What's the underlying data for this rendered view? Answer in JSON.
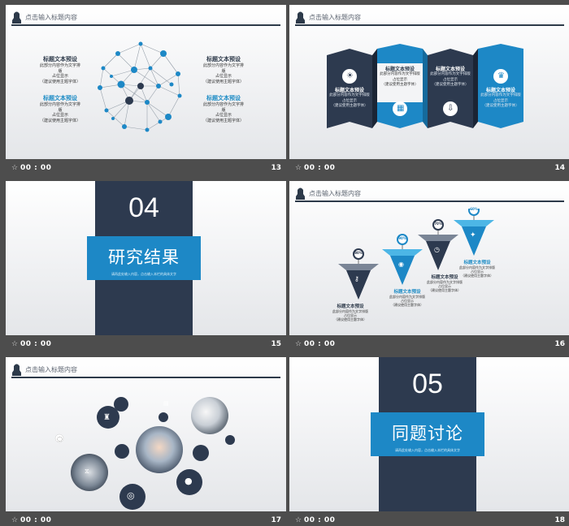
{
  "slides": [
    {
      "number": "13",
      "time": "00 : 00",
      "header": "点击输入标题内容",
      "items": [
        {
          "title": "标题文本预设",
          "line1": "此部分内容作为文字排版",
          "line2": "占位显示",
          "line3": "（建议使用主题字体）"
        },
        {
          "title": "标题文本预设",
          "line1": "此部分内容作为文字排版",
          "line2": "占位显示",
          "line3": "（建议使用主题字体）"
        },
        {
          "title": "标题文本预设",
          "line1": "此部分内容作为文字排版",
          "line2": "占位显示",
          "line3": "（建议使用主题字体）"
        },
        {
          "title": "标题文本预设",
          "line1": "此部分内容作为文字排版",
          "line2": "占位显示",
          "line3": "（建议使用主题字体）"
        }
      ]
    },
    {
      "number": "14",
      "time": "00 : 00",
      "header": "点击输入标题内容",
      "items": [
        {
          "title": "标题文本预设",
          "line1": "此部分内容作为文字排版",
          "line2": "占位显示",
          "line3": "（建议使用主题字体）"
        },
        {
          "title": "标题文本预设",
          "line1": "此部分内容作为文字排版",
          "line2": "占位显示",
          "line3": "（建议使用主题字体）"
        },
        {
          "title": "标题文本预设",
          "line1": "此部分内容作为文字排版",
          "line2": "占位显示",
          "line3": "（建议使用主题字体）"
        },
        {
          "title": "标题文本预设",
          "line1": "此部分内容作为文字排版",
          "line2": "占位显示",
          "line3": "（建议使用主题字体）"
        }
      ]
    },
    {
      "number": "15",
      "time": "00 : 00",
      "section_num": "04",
      "section_title": "研究结果",
      "section_sub": "请再此处输入内容，点击输入本栏的具体文字"
    },
    {
      "number": "16",
      "time": "00 : 00",
      "header": "点击输入标题内容",
      "percents": [
        "80%",
        "90%",
        "70%",
        "60%"
      ],
      "items": [
        {
          "title": "标题文本预设",
          "line1": "此部分内容作为文字排版",
          "line2": "占位显示",
          "line3": "（建议使用主题字体）"
        },
        {
          "title": "标题文本预设",
          "line1": "此部分内容作为文字排版",
          "line2": "占位显示",
          "line3": "（建议使用主题字体）"
        },
        {
          "title": "标题文本预设",
          "line1": "此部分内容作为文字排版",
          "line2": "占位显示",
          "line3": "（建议使用主题字体）"
        },
        {
          "title": "标题文本预设",
          "line1": "此部分内容作为文字排版",
          "line2": "占位显示",
          "line3": "（建议使用主题字体）"
        }
      ]
    },
    {
      "number": "17",
      "time": "00 : 00",
      "header": "点击输入标题内容"
    },
    {
      "number": "18",
      "time": "00 : 00",
      "section_num": "05",
      "section_title": "同题讨论",
      "section_sub": "请再此处输入内容，点击输入本栏的具体文字"
    }
  ],
  "colors": {
    "navy": "#2d3a4f",
    "blue": "#1d88c6",
    "light_blue": "#4db6e6",
    "gray_bg": "#4d4d4d"
  },
  "star_icon": "star-icon"
}
